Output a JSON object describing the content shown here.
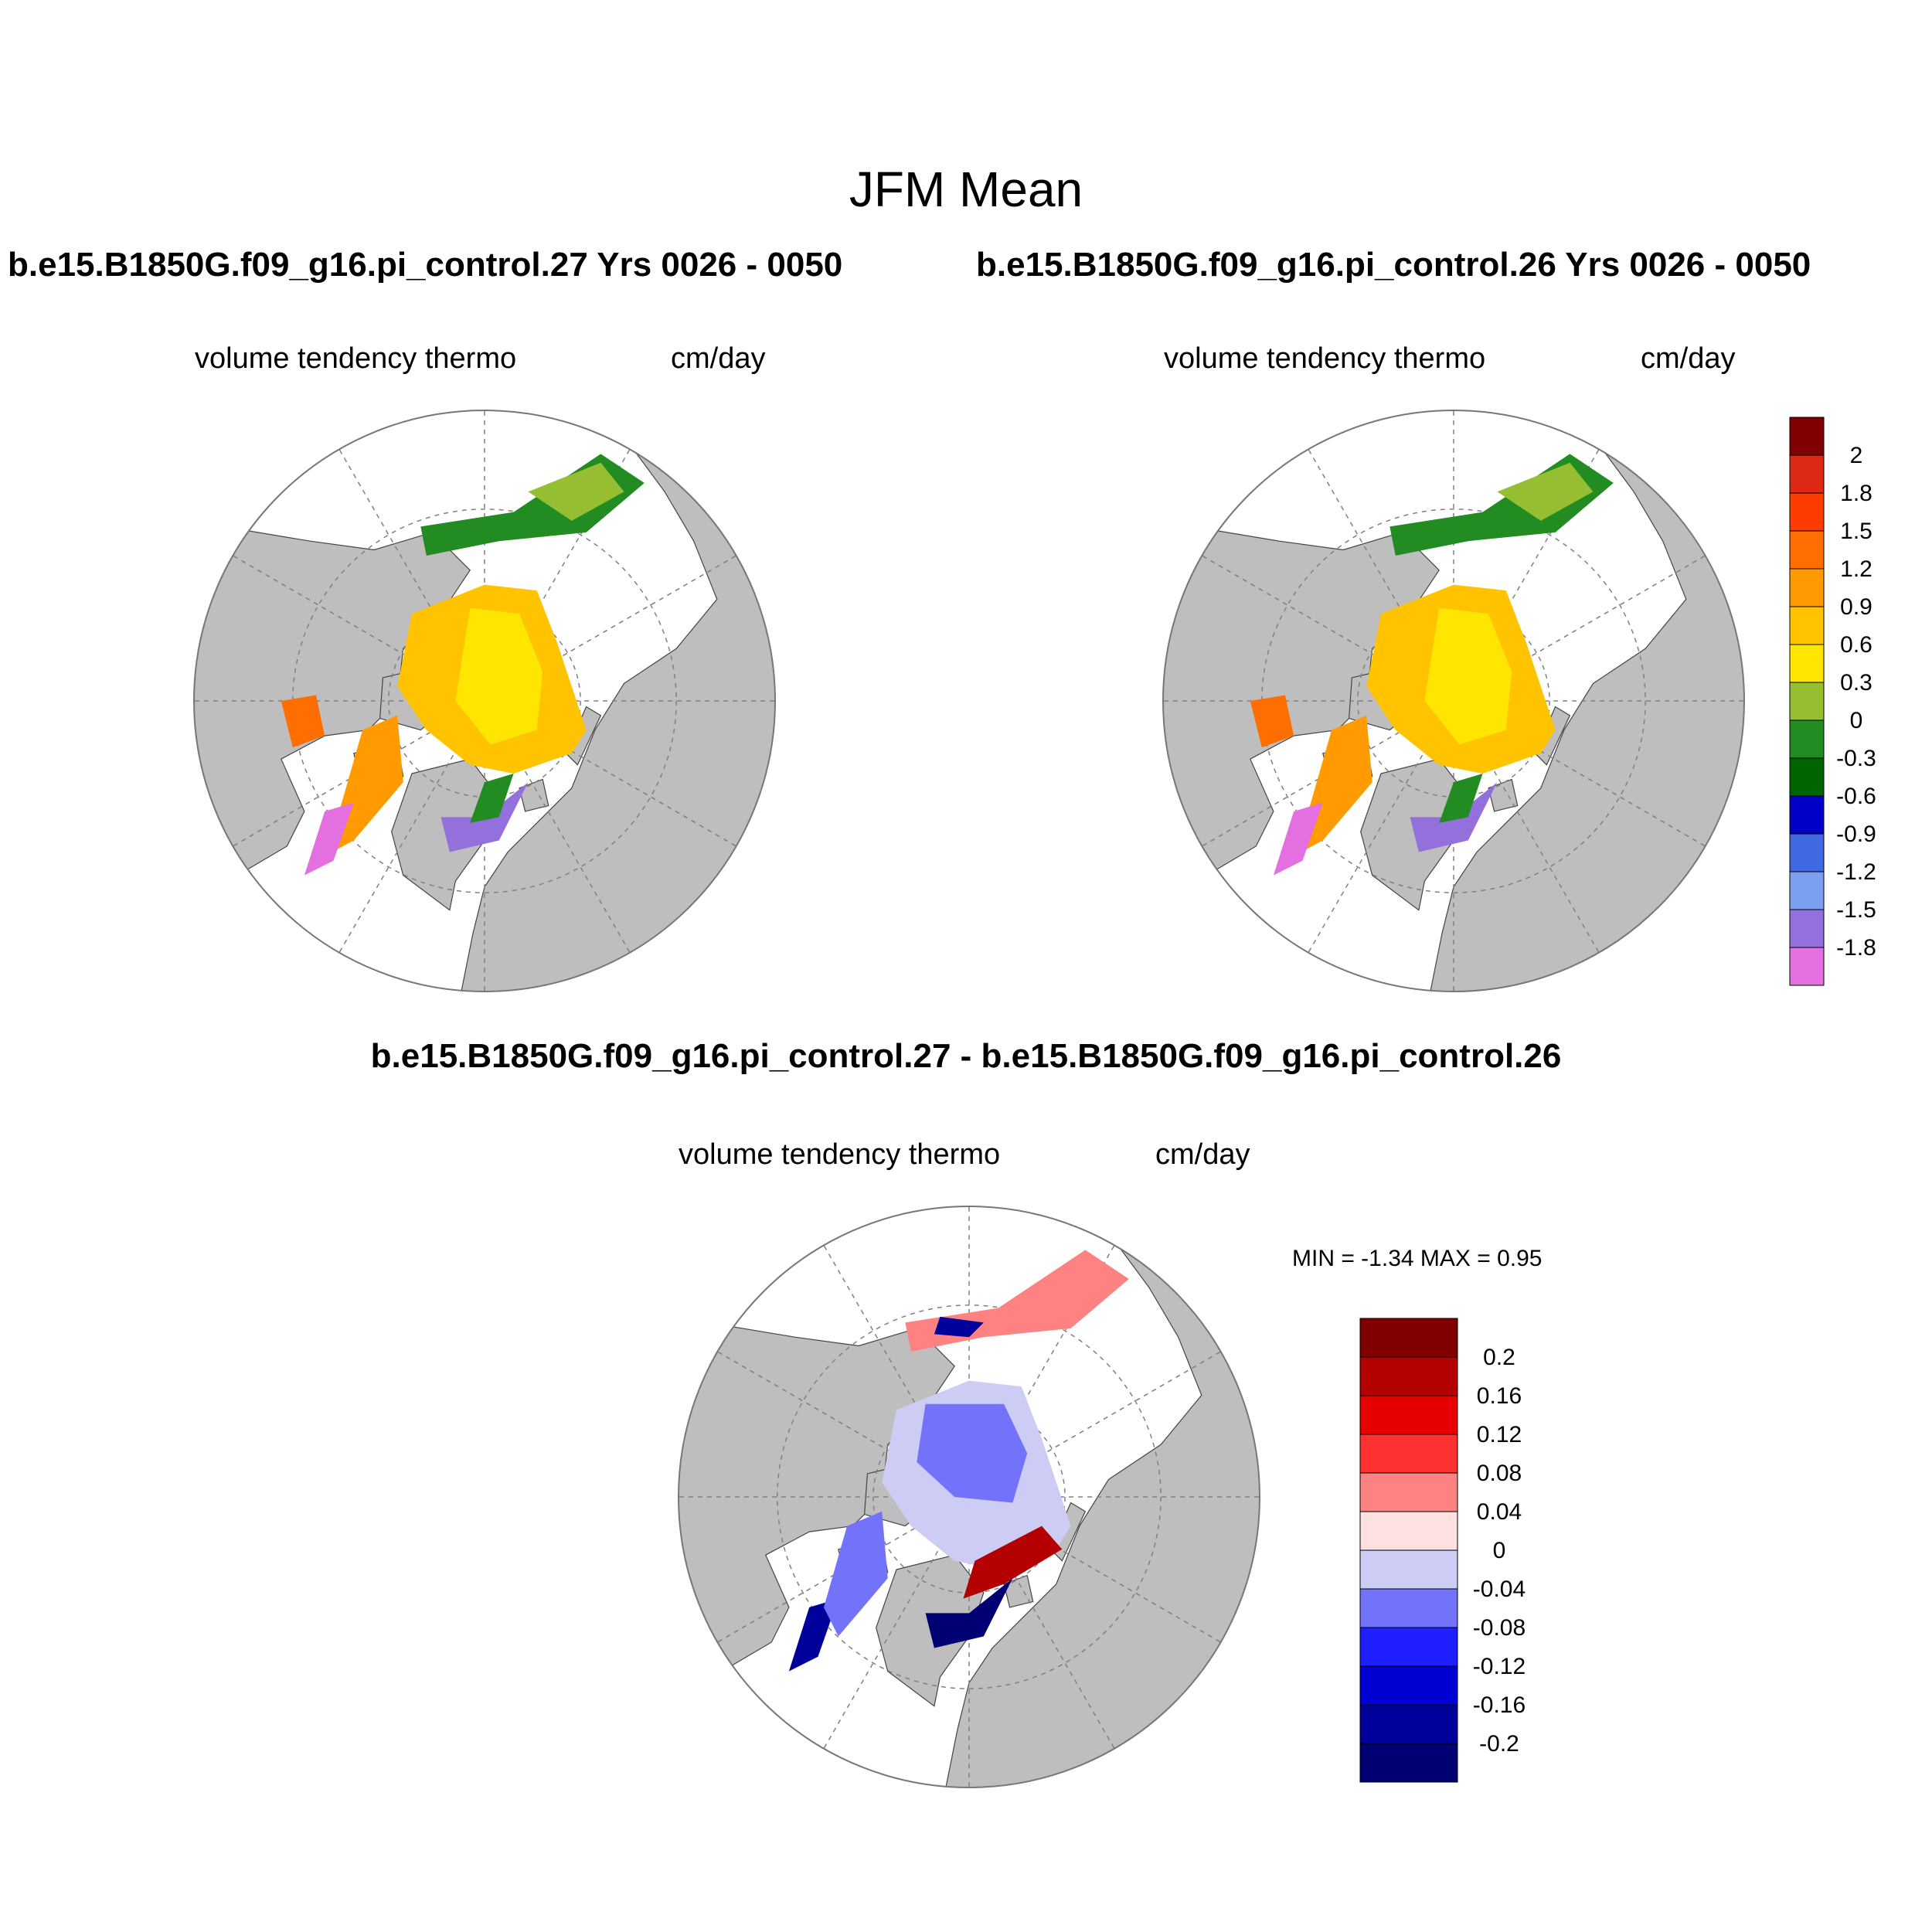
{
  "main_title": "JFM Mean",
  "case_title_left": "b.e15.B1850G.f09_g16.pi_control.27  Yrs 0026 - 0050",
  "case_title_right": "b.e15.B1850G.f09_g16.pi_control.26  Yrs 0026 - 0050",
  "diff_title": "b.e15.B1850G.f09_g16.pi_control.27 - b.e15.B1850G.f09_g16.pi_control.26",
  "panels": {
    "left": {
      "variable": "volume tendency thermo",
      "units": "cm/day"
    },
    "right": {
      "variable": "volume tendency thermo",
      "units": "cm/day"
    },
    "diff": {
      "variable": "volume tendency thermo",
      "units": "cm/day",
      "minmax": "MIN =  -1.34 MAX =   0.95"
    }
  },
  "colors": {
    "land": "#bebebe",
    "ocean": "#ffffff",
    "grid": "#808080"
  },
  "colorbar_main": {
    "labels": [
      "2",
      "1.8",
      "1.5",
      "1.2",
      "0.9",
      "0.6",
      "0.3",
      "0",
      "-0.3",
      "-0.6",
      "-0.9",
      "-1.2",
      "-1.5",
      "-1.8"
    ],
    "colors": [
      "#800000",
      "#dc2814",
      "#ff3c00",
      "#ff6e00",
      "#ff9b00",
      "#ffc300",
      "#ffe600",
      "#96be32",
      "#228c22",
      "#006400",
      "#0000c8",
      "#4169e1",
      "#7ba0f0",
      "#9370db",
      "#e36fe0"
    ]
  },
  "colorbar_diff": {
    "labels": [
      "0.2",
      "0.16",
      "0.12",
      "0.08",
      "0.04",
      "0",
      "-0.04",
      "-0.08",
      "-0.12",
      "-0.16",
      "-0.2"
    ],
    "colors": [
      "#800000",
      "#b40000",
      "#e60000",
      "#ff3232",
      "#ff8282",
      "#fde0e0",
      "#ccccf5",
      "#7272fa",
      "#1e1eff",
      "#0000d2",
      "#00009b",
      "#000073"
    ]
  }
}
